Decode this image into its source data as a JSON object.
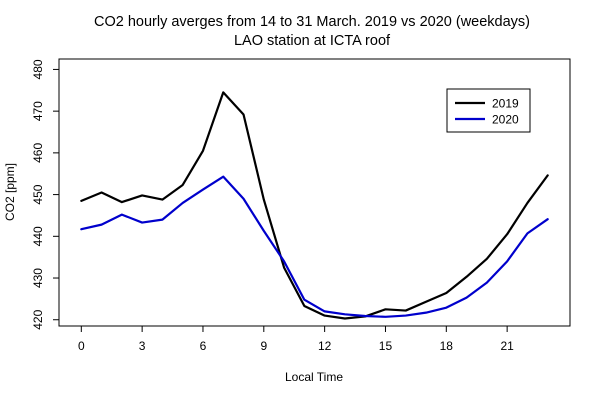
{
  "chart_data": {
    "type": "line",
    "title": "CO2 hourly averges from 14 to 31 March. 2019 vs 2020 (weekdays)",
    "subtitle": "LAO station at ICTA roof",
    "xlabel": "Local Time",
    "ylabel": "CO2 [ppm]",
    "xlim": [
      -1.1,
      24.1
    ],
    "ylim": [
      418.5,
      482.5
    ],
    "xticks": [
      0,
      3,
      6,
      9,
      12,
      15,
      18,
      21
    ],
    "yticks": [
      420,
      430,
      440,
      450,
      460,
      470,
      480
    ],
    "x": [
      0,
      1,
      2,
      3,
      4,
      5,
      6,
      7,
      8,
      9,
      10,
      11,
      12,
      13,
      14,
      15,
      16,
      17,
      18,
      19,
      20,
      21,
      22,
      23
    ],
    "series": [
      {
        "name": "2019",
        "color": "#000000",
        "values": [
          448.5,
          450.5,
          448.2,
          449.8,
          448.8,
          452.3,
          460.5,
          474.5,
          469.2,
          448.8,
          432.5,
          423.3,
          421.0,
          420.3,
          420.8,
          422.5,
          422.2,
          424.3,
          426.4,
          430.3,
          434.6,
          440.5,
          448.0,
          454.6
        ]
      },
      {
        "name": "2020",
        "color": "#0000cc",
        "values": [
          441.7,
          442.8,
          445.2,
          443.3,
          444.0,
          448.0,
          451.2,
          454.3,
          449.0,
          441.3,
          434.0,
          424.8,
          422.0,
          421.3,
          420.9,
          420.7,
          421.0,
          421.7,
          422.9,
          425.3,
          428.9,
          434.0,
          440.7,
          444.1
        ]
      }
    ],
    "legend_position": "top-right",
    "grid": false
  }
}
